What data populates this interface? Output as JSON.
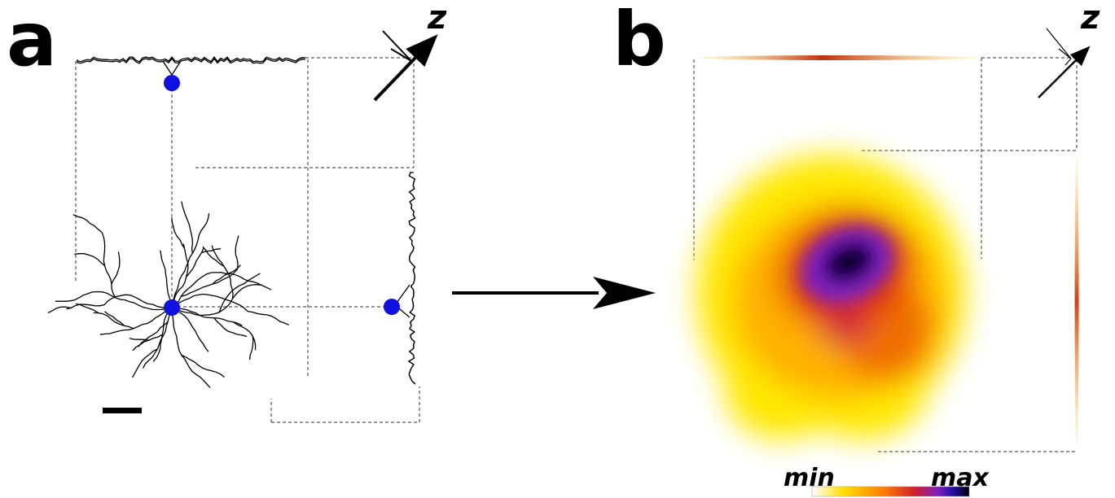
{
  "panels": [
    {
      "label": "a",
      "axis_label": "z"
    },
    {
      "label": "b",
      "axis_label": "z"
    }
  ],
  "colorbar": {
    "min_label": "min",
    "max_label": "max"
  }
}
